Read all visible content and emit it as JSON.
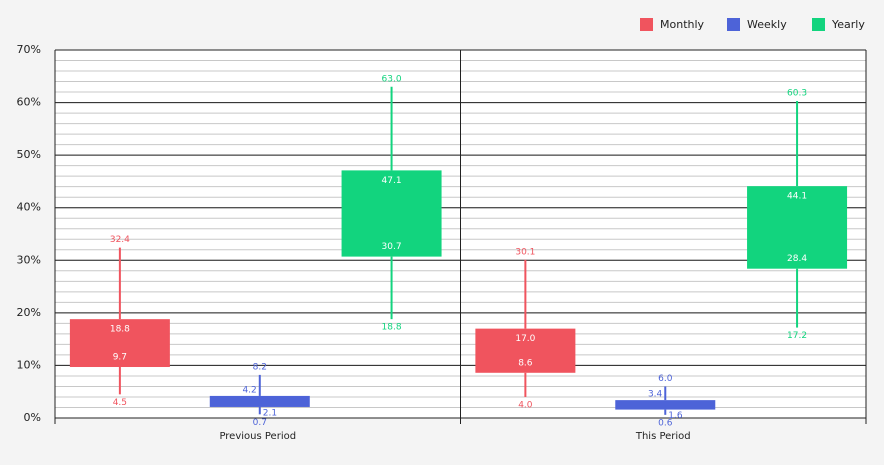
{
  "chart_data": {
    "type": "box",
    "categories": [
      "Previous Period",
      "This Period"
    ],
    "series": [
      {
        "name": "Monthly",
        "color": "#f0545e",
        "low": [
          4.5,
          4.0
        ],
        "q1": [
          9.7,
          8.6
        ],
        "q3": [
          18.8,
          17.0
        ],
        "high": [
          32.4,
          30.1
        ],
        "value_labels": {
          "low": [
            "4.5",
            "4.0"
          ],
          "q1": [
            "9.7",
            "8.6"
          ],
          "q3": [
            "18.8",
            "17.0"
          ],
          "high": [
            "32.4",
            "30.1"
          ]
        }
      },
      {
        "name": "Weekly",
        "color": "#4d63d8",
        "low": [
          0.7,
          0.6
        ],
        "q1": [
          2.1,
          1.6
        ],
        "q3": [
          4.2,
          3.4
        ],
        "high": [
          8.2,
          6.0
        ],
        "value_labels": {
          "low": [
            "0.7",
            "0.6"
          ],
          "q1": [
            "2.1",
            "1.6"
          ],
          "q3": [
            "4.2",
            "3.4"
          ],
          "high": [
            "8.2",
            "6.0"
          ]
        }
      },
      {
        "name": "Yearly",
        "color": "#12d47e",
        "low": [
          18.8,
          17.2
        ],
        "q1": [
          30.7,
          28.4
        ],
        "q3": [
          47.1,
          44.1
        ],
        "high": [
          63.0,
          60.3
        ],
        "value_labels": {
          "low": [
            "18.8",
            "17.2"
          ],
          "q1": [
            "30.7",
            "28.4"
          ],
          "q3": [
            "47.1",
            "44.1"
          ],
          "high": [
            "63.0",
            "60.3"
          ]
        }
      }
    ],
    "ylim": [
      0,
      70
    ],
    "yticks": [
      {
        "value": 0,
        "label": "0%"
      },
      {
        "value": 10,
        "label": "10%"
      },
      {
        "value": 20,
        "label": "20%"
      },
      {
        "value": 30,
        "label": "30%"
      },
      {
        "value": 40,
        "label": "40%"
      },
      {
        "value": 50,
        "label": "50%"
      },
      {
        "value": 60,
        "label": "60%"
      },
      {
        "value": 70,
        "label": "70%"
      }
    ],
    "grid": true,
    "minor_grid_step": 2,
    "legend": "top-right"
  }
}
